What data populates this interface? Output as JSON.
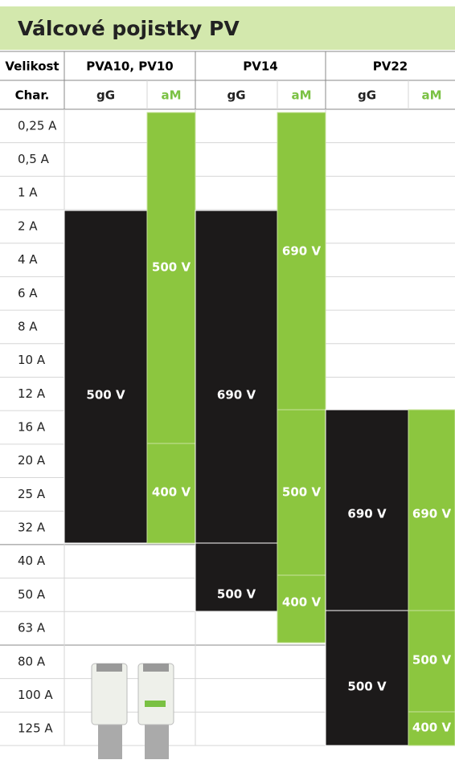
{
  "title": "Válcové pojistky PV",
  "header": {
    "size_label": "Velikost",
    "char_label": "Char.",
    "groups": [
      "PVA10, PV10",
      "PV14",
      "PV22"
    ],
    "chars": [
      "gG",
      "aM",
      "gG",
      "aM",
      "gG",
      "aM"
    ]
  },
  "sizes": [
    "0,25 A",
    "0,5 A",
    "1 A",
    "2 A",
    "4 A",
    "6 A",
    "8 A",
    "10 A",
    "12 A",
    "16 A",
    "20 A",
    "25 A",
    "32 A",
    "40 A",
    "50 A",
    "63 A",
    "80 A",
    "100 A",
    "125 A"
  ],
  "blocks": [
    {
      "label": "500 V"
    },
    {
      "label": "500 V"
    },
    {
      "label": "400 V"
    },
    {
      "label": "690 V"
    },
    {
      "label": "500 V"
    },
    {
      "label": "690 V"
    },
    {
      "label": "500 V"
    },
    {
      "label": "400 V"
    },
    {
      "label": "690 V"
    },
    {
      "label": "500 V"
    },
    {
      "label": "690 V"
    },
    {
      "label": "500 V"
    },
    {
      "label": "400 V"
    }
  ]
}
